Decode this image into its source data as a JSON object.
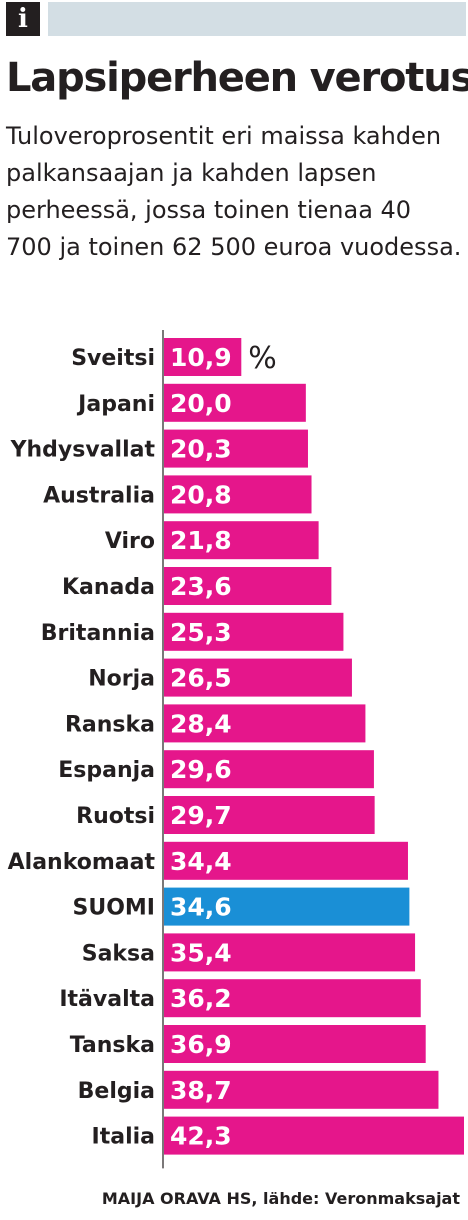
{
  "header": {
    "icon": "info-icon",
    "title": "Lapsiperheen verotus",
    "subtitle": "Tuloveroprosentit eri maissa kahden palkansaajan ja kahden lapsen perheessä, jossa toinen tienaa 40 700 ja toinen 62 500 euroa vuodessa."
  },
  "chart_data": {
    "type": "bar",
    "orientation": "horizontal",
    "unit": "%",
    "categories": [
      "Sveitsi",
      "Japani",
      "Yhdysvallat",
      "Australia",
      "Viro",
      "Kanada",
      "Britannia",
      "Norja",
      "Ranska",
      "Espanja",
      "Ruotsi",
      "Alankomaat",
      "SUOMI",
      "Saksa",
      "Itävalta",
      "Tanska",
      "Belgia",
      "Italia"
    ],
    "values": [
      10.9,
      20.0,
      20.3,
      20.8,
      21.8,
      23.6,
      25.3,
      26.5,
      28.4,
      29.6,
      29.7,
      34.4,
      34.6,
      35.4,
      36.2,
      36.9,
      38.7,
      42.3
    ],
    "value_labels": [
      "10,9",
      "20,0",
      "20,3",
      "20,8",
      "21,8",
      "23,6",
      "25,3",
      "26,5",
      "28,4",
      "29,6",
      "29,7",
      "34,4",
      "34,6",
      "35,4",
      "36,2",
      "36,9",
      "38,7",
      "42,3"
    ],
    "highlight": "SUOMI",
    "colors": {
      "bar": "#e5168b",
      "highlight": "#1a8fd6",
      "text": "#231f20",
      "label": "#ffffff",
      "band": "#d3dee4"
    },
    "xlim": [
      0,
      42.3
    ]
  },
  "footer": {
    "credit": "MAIJA ORAVA HS, lähde: Veronmaksajat"
  }
}
